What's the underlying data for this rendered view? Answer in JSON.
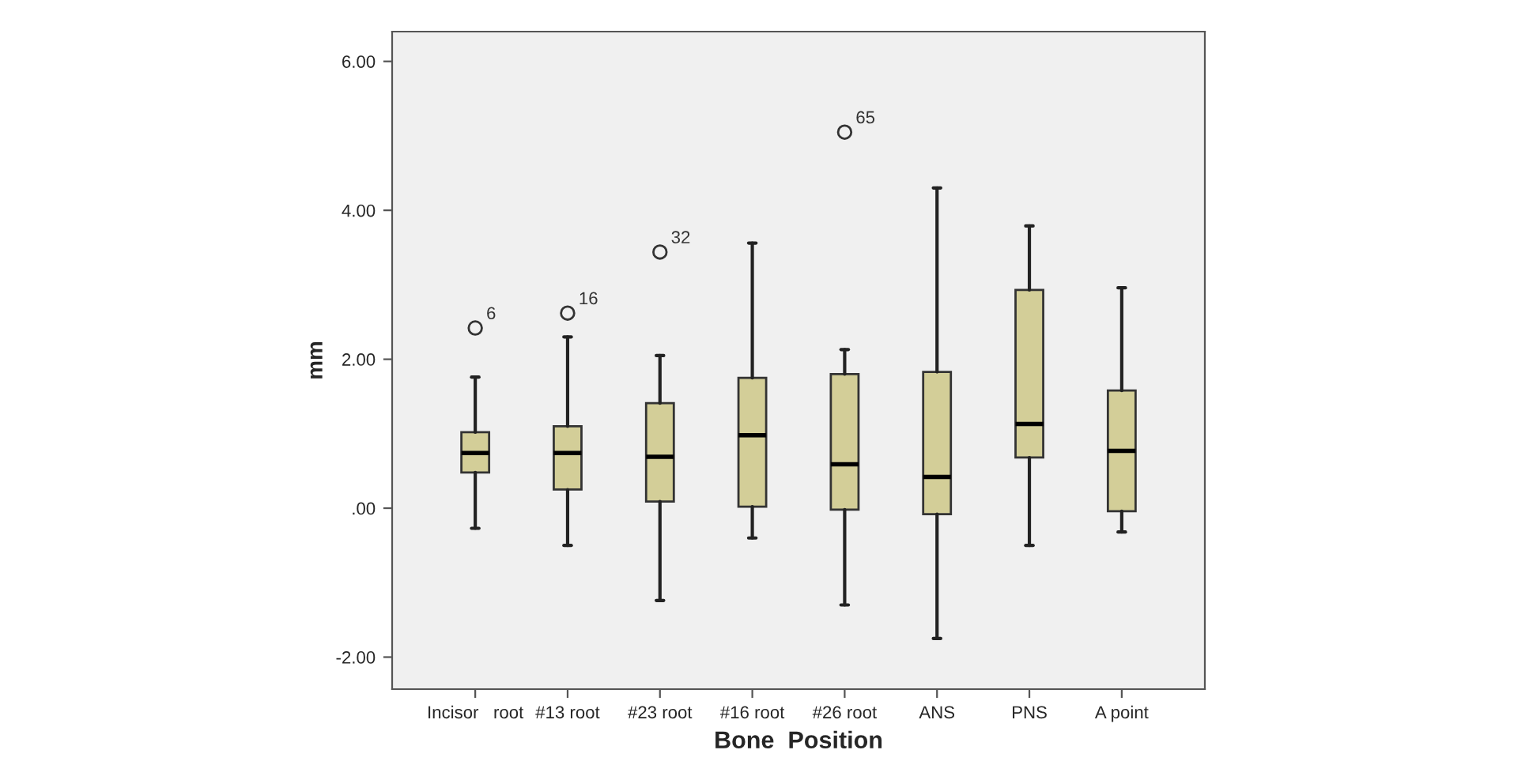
{
  "chart_data": {
    "type": "box",
    "xlabel": "Bone  Position",
    "ylabel": "mm",
    "categories": [
      "Incisor   root",
      "#13 root",
      "#23 root",
      "#16 root",
      "#26 root",
      "ANS",
      "PNS",
      "A point"
    ],
    "boxes": [
      {
        "low": -0.27,
        "q1": 0.48,
        "median": 0.74,
        "q3": 1.02,
        "high": 1.76,
        "outliers": [
          2.42
        ]
      },
      {
        "low": -0.5,
        "q1": 0.25,
        "median": 0.74,
        "q3": 1.1,
        "high": 2.3,
        "outliers": [
          2.62
        ]
      },
      {
        "low": -1.24,
        "q1": 0.09,
        "median": 0.69,
        "q3": 1.41,
        "high": 2.05,
        "outliers": [
          3.44
        ]
      },
      {
        "low": -0.4,
        "q1": 0.02,
        "median": 0.98,
        "q3": 1.75,
        "high": 3.56
      },
      {
        "low": -1.3,
        "q1": -0.02,
        "median": 0.59,
        "q3": 1.8,
        "high": 2.13,
        "outliers": [
          5.05
        ]
      },
      {
        "low": -1.75,
        "q1": -0.08,
        "median": 0.42,
        "q3": 1.83,
        "high": 4.3
      },
      {
        "low": -0.5,
        "q1": 0.68,
        "median": 1.13,
        "q3": 2.93,
        "high": 3.79
      },
      {
        "low": -0.32,
        "q1": -0.04,
        "median": 0.77,
        "q3": 1.58,
        "high": 2.96
      }
    ],
    "color": "#d3ce98",
    "ylim": [
      -2.43,
      6.4
    ],
    "yticks": [
      {
        "value": -2,
        "label": "-2.00"
      },
      {
        "value": 0,
        "label": ".00"
      },
      {
        "value": 2,
        "label": "2.00"
      },
      {
        "value": 4,
        "label": "4.00"
      },
      {
        "value": 6,
        "label": "6.00"
      }
    ],
    "annotations": [
      "6",
      "16",
      "32",
      "65"
    ],
    "grid": false,
    "legend": false
  }
}
